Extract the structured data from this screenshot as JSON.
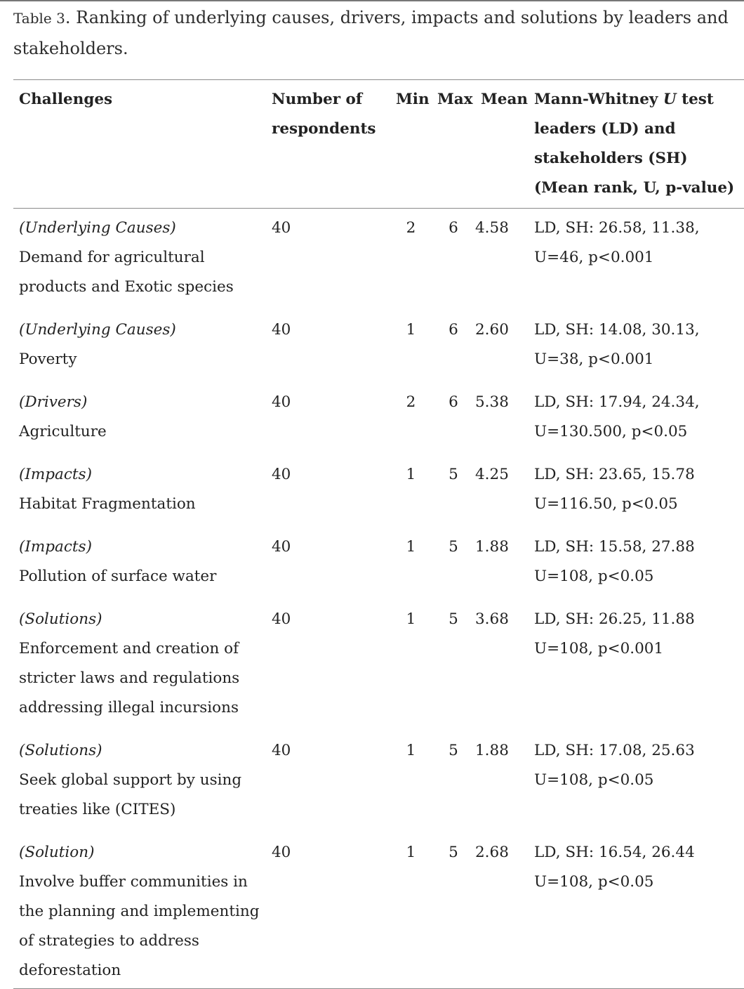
{
  "caption": {
    "label": "Table 3",
    "text": ". Ranking of underlying causes, drivers, impacts and solutions by leaders and stakeholders."
  },
  "table": {
    "headers": {
      "challenges": "Challenges",
      "respondents": "Number of respondents",
      "min": "Min",
      "max": "Max",
      "mean": "Mean",
      "mw_part1": "Mann-Whitney ",
      "mw_italic": "U",
      "mw_part2": " test leaders (LD) and stakeholders (SH) (Mean rank, U, p-value)"
    },
    "rows": [
      {
        "category": "(Underlying Causes)",
        "item": "Demand for agricultural products and Exotic species",
        "respondents": "40",
        "min": "2",
        "max": "6",
        "mean": "4.58",
        "test_line1": "LD, SH: 26.58, 11.38,",
        "test_line2": "U=46, p<0.001"
      },
      {
        "category": "(Underlying Causes)",
        "item": "Poverty",
        "respondents": "40",
        "min": "1",
        "max": "6",
        "mean": "2.60",
        "test_line1": "LD, SH: 14.08, 30.13,",
        "test_line2": "U=38, p<0.001"
      },
      {
        "category": "(Drivers)",
        "item": "Agriculture",
        "respondents": "40",
        "min": "2",
        "max": "6",
        "mean": "5.38",
        "test_line1": "LD, SH: 17.94, 24.34,",
        "test_line2": "U=130.500, p<0.05"
      },
      {
        "category": "(Impacts)",
        "item": "Habitat Fragmentation",
        "respondents": "40",
        "min": "1",
        "max": "5",
        "mean": "4.25",
        "test_line1": "LD, SH: 23.65, 15.78",
        "test_line2": "U=116.50, p<0.05"
      },
      {
        "category": "(Impacts)",
        "item": "Pollution of surface water",
        "respondents": "40",
        "min": "1",
        "max": "5",
        "mean": "1.88",
        "test_line1": "LD, SH: 15.58, 27.88",
        "test_line2": "U=108, p<0.05"
      },
      {
        "category": "(Solutions)",
        "item": "Enforcement and creation of stricter laws and regulations addressing illegal incursions",
        "respondents": "40",
        "min": "1",
        "max": "5",
        "mean": "3.68",
        "test_line1": "LD, SH: 26.25, 11.88",
        "test_line2": "U=108, p<0.001"
      },
      {
        "category": "(Solutions)",
        "item": "Seek global support by using treaties like (CITES)",
        "respondents": "40",
        "min": "1",
        "max": "5",
        "mean": "1.88",
        "test_line1": "LD, SH: 17.08, 25.63",
        "test_line2": "U=108, p<0.05"
      },
      {
        "category": "(Solution)",
        "item": "Involve buffer communities in the planning and implementing of strategies to address deforestation",
        "respondents": "40",
        "min": "1",
        "max": "5",
        "mean": "2.68",
        "test_line1": "LD, SH: 16.54, 26.44",
        "test_line2": "U=108, p<0.05"
      }
    ]
  }
}
